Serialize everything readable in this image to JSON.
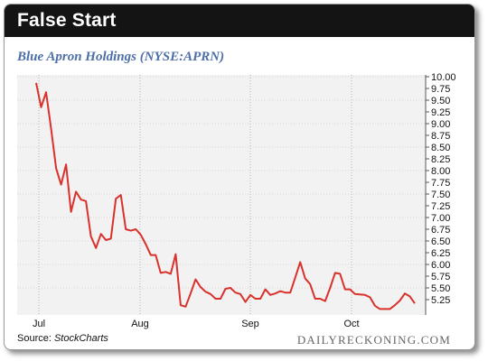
{
  "header": {
    "title": "False Start"
  },
  "source": {
    "prefix": "Source: ",
    "name": "StockCharts"
  },
  "brand": "DAILYRECKONING.COM",
  "colors": {
    "line": "#d9312b",
    "header_bg": "#141414",
    "subtitle": "#4d6fa8",
    "plot_bg": "#f2f2f2"
  },
  "chart_data": {
    "type": "line",
    "title": "Blue Apron Holdings (NYSE:APRN)",
    "xlabel": "",
    "ylabel": "",
    "ylim": [
      5.0,
      10.0
    ],
    "yticks": [
      5.25,
      5.5,
      5.75,
      6.0,
      6.25,
      6.5,
      6.75,
      7.0,
      7.25,
      7.5,
      7.75,
      8.0,
      8.25,
      8.5,
      8.75,
      9.0,
      9.25,
      9.5,
      9.75,
      10.0
    ],
    "ytick_labels": [
      "5.25",
      "5.50",
      "5.75",
      "6.00",
      "6.25",
      "6.50",
      "6.75",
      "7.00",
      "7.25",
      "7.50",
      "7.75",
      "8.00",
      "8.25",
      "8.50",
      "8.75",
      "9.00",
      "9.25",
      "9.50",
      "9.75",
      "10.00"
    ],
    "xticks": [
      "Jul",
      "Aug",
      "Sep",
      "Oct"
    ],
    "grid": true,
    "series": [
      {
        "values": [
          9.87,
          9.35,
          9.67,
          8.9,
          8.05,
          7.7,
          8.13,
          7.12,
          7.55,
          7.38,
          7.35,
          6.6,
          6.35,
          6.65,
          6.52,
          6.55,
          7.4,
          7.48,
          6.75,
          6.72,
          6.75,
          6.63,
          6.43,
          6.2,
          6.2,
          5.82,
          5.84,
          5.8,
          6.22,
          5.13,
          5.1,
          5.38,
          5.68,
          5.52,
          5.42,
          5.37,
          5.27,
          5.27,
          5.48,
          5.5,
          5.4,
          5.37,
          5.2,
          5.35,
          5.27,
          5.27,
          5.47,
          5.35,
          5.38,
          5.43,
          5.4,
          5.4,
          5.72,
          6.05,
          5.7,
          5.58,
          5.27,
          5.27,
          5.22,
          5.5,
          5.82,
          5.8,
          5.47,
          5.47,
          5.37,
          5.36,
          5.35,
          5.3,
          5.12,
          5.05,
          5.05,
          5.05,
          5.13,
          5.23,
          5.38,
          5.32,
          5.17
        ]
      }
    ]
  }
}
